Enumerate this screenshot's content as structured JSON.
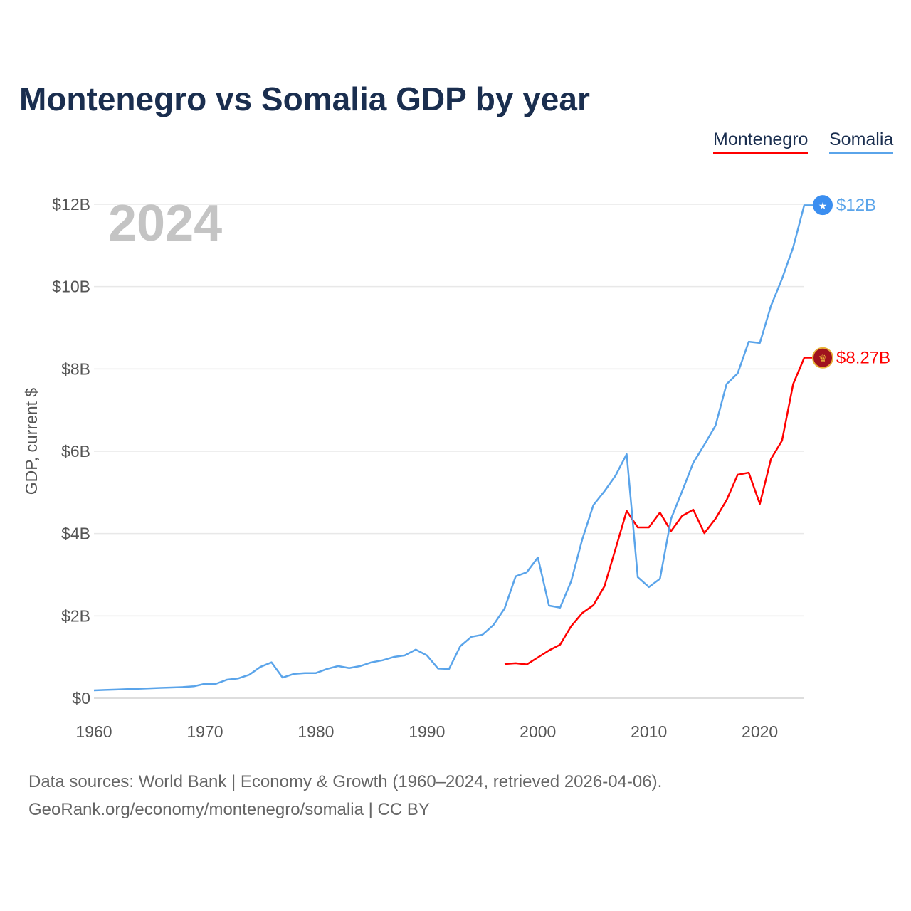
{
  "chart_data": {
    "type": "line",
    "title": "Montenegro vs Somalia GDP by year",
    "ylabel": "GDP, current $",
    "xlabel": "",
    "year_label": "2024",
    "ylim": [
      0,
      12
    ],
    "xlim": [
      1960,
      2024
    ],
    "yticks": [
      {
        "v": 0,
        "label": "$0"
      },
      {
        "v": 2,
        "label": "$2B"
      },
      {
        "v": 4,
        "label": "$4B"
      },
      {
        "v": 6,
        "label": "$6B"
      },
      {
        "v": 8,
        "label": "$8B"
      },
      {
        "v": 10,
        "label": "$10B"
      },
      {
        "v": 12,
        "label": "$12B"
      }
    ],
    "xticks": [
      1960,
      1970,
      1980,
      1990,
      2000,
      2010,
      2020
    ],
    "legend_position": "top-right",
    "series": [
      {
        "name": "Montenegro",
        "color": "#ff0000",
        "end_label": "$8.27B",
        "start": 1997,
        "values": [
          0.83,
          0.85,
          0.82,
          0.99,
          1.16,
          1.3,
          1.75,
          2.07,
          2.26,
          2.72,
          3.63,
          4.55,
          4.15,
          4.15,
          4.51,
          4.06,
          4.43,
          4.58,
          4.01,
          4.36,
          4.81,
          5.43,
          5.48,
          4.72,
          5.81,
          6.26,
          7.63,
          8.27
        ]
      },
      {
        "name": "Somalia",
        "color": "#5aa4ea",
        "end_label": "$12B",
        "start": 1960,
        "values": [
          0.19,
          0.2,
          0.21,
          0.22,
          0.23,
          0.24,
          0.25,
          0.26,
          0.27,
          0.29,
          0.35,
          0.35,
          0.45,
          0.48,
          0.57,
          0.76,
          0.87,
          0.5,
          0.59,
          0.61,
          0.61,
          0.71,
          0.78,
          0.73,
          0.78,
          0.87,
          0.92,
          1.0,
          1.04,
          1.18,
          1.04,
          0.72,
          0.71,
          1.26,
          1.49,
          1.54,
          1.78,
          2.18,
          2.96,
          3.06,
          3.42,
          2.25,
          2.2,
          2.84,
          3.86,
          4.69,
          5.03,
          5.41,
          5.93,
          2.94,
          2.7,
          2.9,
          4.36,
          5.03,
          5.72,
          6.16,
          6.62,
          7.63,
          7.89,
          8.66,
          8.63,
          9.53,
          10.19,
          10.95,
          11.98
        ]
      }
    ]
  },
  "footer": {
    "line1": "Data sources: World Bank | Economy & Growth (1960–2024, retrieved 2026-04-06).",
    "line2": "GeoRank.org/economy/montenegro/somalia | CC BY"
  }
}
